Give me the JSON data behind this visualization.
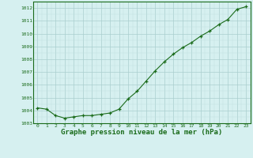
{
  "x": [
    0,
    1,
    2,
    3,
    4,
    5,
    6,
    7,
    8,
    9,
    10,
    11,
    12,
    13,
    14,
    15,
    16,
    17,
    18,
    19,
    20,
    21,
    22,
    23
  ],
  "y": [
    1004.2,
    1004.1,
    1003.6,
    1003.4,
    1003.5,
    1003.6,
    1003.6,
    1003.7,
    1003.8,
    1004.1,
    1004.9,
    1005.5,
    1006.3,
    1007.1,
    1007.8,
    1008.4,
    1008.9,
    1009.3,
    1009.8,
    1010.2,
    1010.7,
    1011.1,
    1011.9,
    1012.1
  ],
  "line_color": "#1a6b1a",
  "marker": "+",
  "bg_color": "#d6f0f0",
  "xlabel": "Graphe pression niveau de la mer (hPa)",
  "xlabel_color": "#1a6b1a",
  "tick_color": "#1a6b1a",
  "ylim": [
    1003.0,
    1012.5
  ],
  "yticks": [
    1003,
    1004,
    1005,
    1006,
    1007,
    1008,
    1009,
    1010,
    1011,
    1012
  ],
  "xlim": [
    -0.5,
    23.5
  ],
  "xticks": [
    0,
    1,
    2,
    3,
    4,
    5,
    6,
    7,
    8,
    9,
    10,
    11,
    12,
    13,
    14,
    15,
    16,
    17,
    18,
    19,
    20,
    21,
    22,
    23
  ],
  "grid_major_color": "#aacece",
  "grid_minor_color": "#c0e0e0",
  "spine_color": "#1a6b1a"
}
